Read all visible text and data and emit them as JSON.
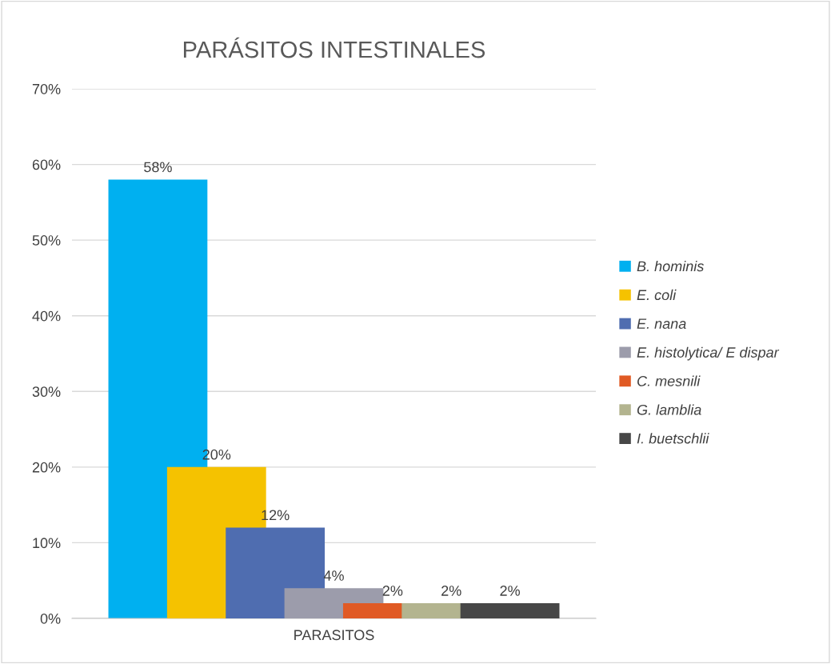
{
  "chart_data": {
    "type": "bar",
    "title": "PARÁSITOS INTESTINALES",
    "categories": [
      "PARASITOS"
    ],
    "series": [
      {
        "name": "B. hominis",
        "color": "#00b0f0",
        "values": [
          58
        ],
        "value_labels": [
          "58%"
        ]
      },
      {
        "name": "E. coli",
        "color": "#f5c200",
        "values": [
          20
        ],
        "value_labels": [
          "20%"
        ]
      },
      {
        "name": "E. nana",
        "color": "#4f6db0",
        "values": [
          12
        ],
        "value_labels": [
          "12%"
        ]
      },
      {
        "name": "E. histolytica/ E dispar",
        "color": "#9c9cab",
        "values": [
          4
        ],
        "value_labels": [
          "4%"
        ]
      },
      {
        "name": "C. mesnili",
        "color": "#e05a24",
        "values": [
          2
        ],
        "value_labels": [
          "2%"
        ]
      },
      {
        "name": "G. lamblia",
        "color": "#b3b48f",
        "values": [
          2
        ],
        "value_labels": [
          "2%"
        ]
      },
      {
        "name": "I. buetschlii",
        "color": "#474747",
        "values": [
          2
        ],
        "value_labels": [
          "2%"
        ]
      }
    ],
    "ylim": [
      0,
      70
    ],
    "yticks": [
      {
        "value": 0,
        "label": "0%"
      },
      {
        "value": 10,
        "label": "10%"
      },
      {
        "value": 20,
        "label": "20%"
      },
      {
        "value": 30,
        "label": "30%"
      },
      {
        "value": 40,
        "label": "40%"
      },
      {
        "value": 50,
        "label": "50%"
      },
      {
        "value": 60,
        "label": "60%"
      },
      {
        "value": 70,
        "label": "70%"
      }
    ],
    "grid": "y",
    "legend": "right"
  }
}
